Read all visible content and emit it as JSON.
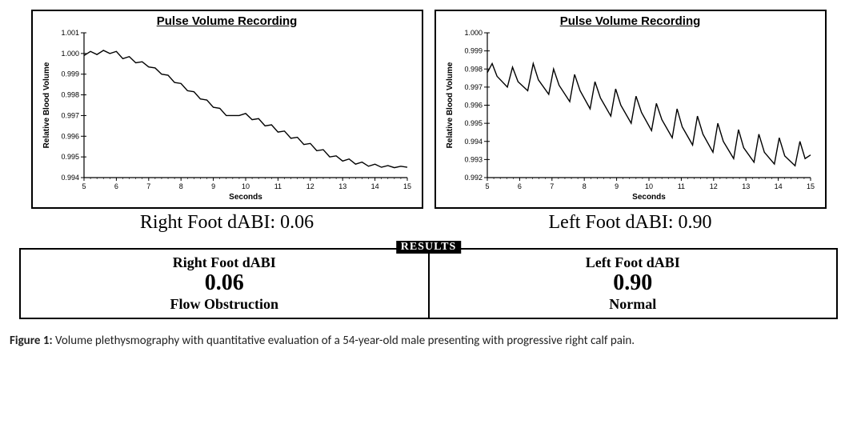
{
  "charts": {
    "left_panel": {
      "type": "line",
      "title": "Pulse Volume Recording",
      "xlabel": "Seconds",
      "ylabel": "Relative Blood Volume",
      "xlim": [
        5,
        15
      ],
      "ylim": [
        0.994,
        1.001
      ],
      "xticks": [
        5,
        6,
        7,
        8,
        9,
        10,
        11,
        12,
        13,
        14,
        15
      ],
      "yticks": [
        0.994,
        0.995,
        0.996,
        0.997,
        0.998,
        0.999,
        1.0,
        1.001
      ],
      "ytick_labels": [
        "0.994",
        "0.995",
        "0.996",
        "0.997",
        "0.998",
        "0.999",
        "1.000",
        "1.001"
      ],
      "line_color": "#000000",
      "line_width": 1.4,
      "grid_color": "#000000",
      "background_color": "#ffffff",
      "label_fontsize": 10,
      "tick_fontsize": 9,
      "series": [
        [
          5.0,
          0.9999
        ],
        [
          5.2,
          1.0001
        ],
        [
          5.4,
          0.99995
        ],
        [
          5.6,
          1.00015
        ],
        [
          5.8,
          1.0
        ],
        [
          6.0,
          1.0001
        ],
        [
          6.2,
          0.99975
        ],
        [
          6.4,
          0.99985
        ],
        [
          6.6,
          0.99955
        ],
        [
          6.8,
          0.9996
        ],
        [
          7.0,
          0.99935
        ],
        [
          7.2,
          0.9993
        ],
        [
          7.4,
          0.999
        ],
        [
          7.6,
          0.99895
        ],
        [
          7.8,
          0.9986
        ],
        [
          8.0,
          0.99855
        ],
        [
          8.2,
          0.9982
        ],
        [
          8.4,
          0.99815
        ],
        [
          8.6,
          0.9978
        ],
        [
          8.8,
          0.99775
        ],
        [
          9.0,
          0.9974
        ],
        [
          9.2,
          0.99735
        ],
        [
          9.4,
          0.997
        ],
        [
          9.6,
          0.997
        ],
        [
          9.8,
          0.997
        ],
        [
          10.0,
          0.9971
        ],
        [
          10.2,
          0.9968
        ],
        [
          10.4,
          0.99685
        ],
        [
          10.6,
          0.9965
        ],
        [
          10.8,
          0.99655
        ],
        [
          11.0,
          0.9962
        ],
        [
          11.2,
          0.99625
        ],
        [
          11.4,
          0.9959
        ],
        [
          11.6,
          0.99595
        ],
        [
          11.8,
          0.9956
        ],
        [
          12.0,
          0.99565
        ],
        [
          12.2,
          0.9953
        ],
        [
          12.4,
          0.99535
        ],
        [
          12.6,
          0.995
        ],
        [
          12.8,
          0.99505
        ],
        [
          13.0,
          0.9948
        ],
        [
          13.2,
          0.9949
        ],
        [
          13.4,
          0.99465
        ],
        [
          13.6,
          0.99475
        ],
        [
          13.8,
          0.99455
        ],
        [
          14.0,
          0.99465
        ],
        [
          14.2,
          0.9945
        ],
        [
          14.4,
          0.99458
        ],
        [
          14.6,
          0.99448
        ],
        [
          14.8,
          0.99455
        ],
        [
          15.0,
          0.9945
        ]
      ],
      "subcaption": "Right Foot dABI: 0.06"
    },
    "right_panel": {
      "type": "line",
      "title": "Pulse Volume Recording",
      "xlabel": "Seconds",
      "ylabel": "Relative Blood Volume",
      "xlim": [
        5,
        15
      ],
      "ylim": [
        0.992,
        1.0
      ],
      "xticks": [
        5,
        6,
        7,
        8,
        9,
        10,
        11,
        12,
        13,
        14,
        15
      ],
      "yticks": [
        0.992,
        0.993,
        0.994,
        0.995,
        0.996,
        0.997,
        0.998,
        0.999,
        1.0
      ],
      "ytick_labels": [
        "0.992",
        "0.993",
        "0.994",
        "0.995",
        "0.996",
        "0.997",
        "0.998",
        "0.999",
        "1.000"
      ],
      "line_color": "#000000",
      "line_width": 1.4,
      "grid_color": "#000000",
      "background_color": "#ffffff",
      "label_fontsize": 10,
      "tick_fontsize": 9,
      "series": [
        [
          5.0,
          0.9978
        ],
        [
          5.15,
          0.9983
        ],
        [
          5.3,
          0.9976
        ],
        [
          5.62,
          0.997
        ],
        [
          5.78,
          0.9981
        ],
        [
          5.95,
          0.9973
        ],
        [
          6.25,
          0.9968
        ],
        [
          6.42,
          0.9983
        ],
        [
          6.58,
          0.9974
        ],
        [
          6.9,
          0.9966
        ],
        [
          7.05,
          0.998
        ],
        [
          7.22,
          0.9971
        ],
        [
          7.55,
          0.9962
        ],
        [
          7.7,
          0.9977
        ],
        [
          7.87,
          0.9968
        ],
        [
          8.18,
          0.9958
        ],
        [
          8.33,
          0.9973
        ],
        [
          8.5,
          0.9964
        ],
        [
          8.82,
          0.9954
        ],
        [
          8.97,
          0.9969
        ],
        [
          9.13,
          0.996
        ],
        [
          9.45,
          0.995
        ],
        [
          9.6,
          0.9965
        ],
        [
          9.77,
          0.9956
        ],
        [
          10.08,
          0.9946
        ],
        [
          10.23,
          0.9961
        ],
        [
          10.4,
          0.9952
        ],
        [
          10.72,
          0.9942
        ],
        [
          10.87,
          0.9958
        ],
        [
          11.03,
          0.9948
        ],
        [
          11.35,
          0.9938
        ],
        [
          11.5,
          0.9954
        ],
        [
          11.67,
          0.9944
        ],
        [
          11.98,
          0.9934
        ],
        [
          12.13,
          0.995
        ],
        [
          12.3,
          0.994
        ],
        [
          12.62,
          0.99305
        ],
        [
          12.77,
          0.99465
        ],
        [
          12.93,
          0.99365
        ],
        [
          13.25,
          0.99285
        ],
        [
          13.4,
          0.9944
        ],
        [
          13.57,
          0.9934
        ],
        [
          13.88,
          0.99275
        ],
        [
          14.03,
          0.9942
        ],
        [
          14.2,
          0.9932
        ],
        [
          14.52,
          0.99265
        ],
        [
          14.67,
          0.994
        ],
        [
          14.83,
          0.99305
        ],
        [
          15.0,
          0.99325
        ]
      ],
      "subcaption": "Left Foot dABI: 0.90"
    }
  },
  "results": {
    "header": "RESULTS",
    "left": {
      "heading": "Right Foot dABI",
      "value": "0.06",
      "status": "Flow Obstruction"
    },
    "right": {
      "heading": "Left Foot dABI",
      "value": "0.90",
      "status": "Normal"
    }
  },
  "caption": {
    "label": "Figure 1:",
    "text": " Volume plethysmography with quantitative evaluation of a 54-year-old male presenting with progressive right calf pain."
  }
}
